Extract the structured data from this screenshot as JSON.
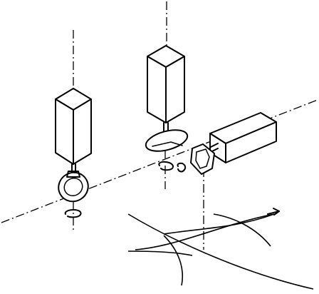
{
  "figure": {
    "description_name": "three-spindle-tool-arrangement",
    "stroke_color": "#000000",
    "background_color": "#ffffff"
  }
}
